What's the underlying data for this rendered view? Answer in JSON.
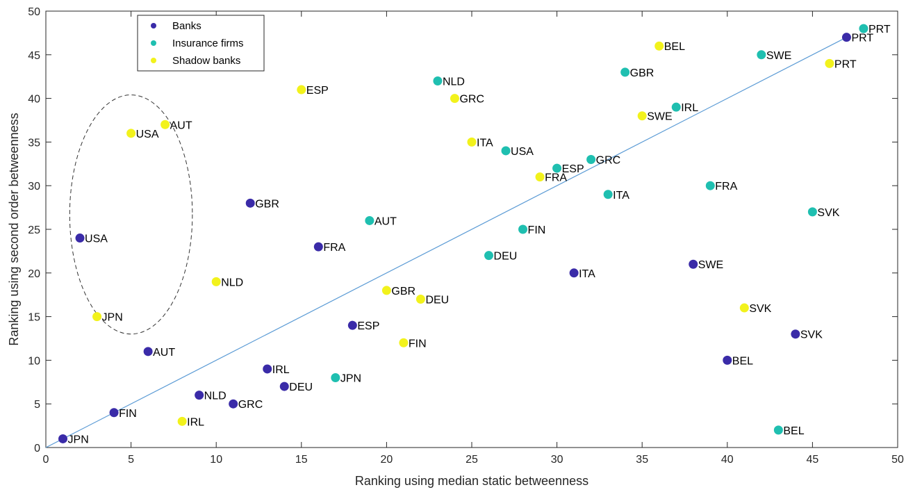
{
  "chart_data": {
    "type": "scatter",
    "xlabel": "Ranking using median static betweenness",
    "ylabel": "Ranking using second order betweenness",
    "xlim": [
      0,
      50
    ],
    "ylim": [
      0,
      50
    ],
    "xticks": [
      0,
      5,
      10,
      15,
      20,
      25,
      30,
      35,
      40,
      45,
      50
    ],
    "yticks": [
      0,
      5,
      10,
      15,
      20,
      25,
      30,
      35,
      40,
      45,
      50
    ],
    "grid": false,
    "legend": "top-left",
    "reference_line": {
      "type": "diagonal",
      "x": [
        0,
        47
      ],
      "y": [
        0,
        47
      ],
      "color": "#5b9bd5"
    },
    "highlight_ellipse": {
      "center": [
        5,
        26.7
      ],
      "rx": 3.6,
      "ry": 13.7,
      "style": "dashed"
    },
    "series": [
      {
        "name": "Banks",
        "color": "#3a2ba8",
        "points": [
          {
            "label": "JPN",
            "x": 1,
            "y": 1
          },
          {
            "label": "USA",
            "x": 2,
            "y": 24
          },
          {
            "label": "FIN",
            "x": 4,
            "y": 4
          },
          {
            "label": "AUT",
            "x": 6,
            "y": 11
          },
          {
            "label": "NLD",
            "x": 9,
            "y": 6
          },
          {
            "label": "GRC",
            "x": 11,
            "y": 5
          },
          {
            "label": "GBR",
            "x": 12,
            "y": 28
          },
          {
            "label": "IRL",
            "x": 13,
            "y": 9
          },
          {
            "label": "DEU",
            "x": 14,
            "y": 7
          },
          {
            "label": "FRA",
            "x": 16,
            "y": 23
          },
          {
            "label": "ESP",
            "x": 18,
            "y": 14
          },
          {
            "label": "ITA",
            "x": 31,
            "y": 20
          },
          {
            "label": "SWE",
            "x": 38,
            "y": 21
          },
          {
            "label": "BEL",
            "x": 40,
            "y": 10
          },
          {
            "label": "SVK",
            "x": 44,
            "y": 13
          },
          {
            "label": "PRT",
            "x": 47,
            "y": 47
          }
        ]
      },
      {
        "name": "Insurance firms",
        "color": "#1fbfb0",
        "points": [
          {
            "label": "JPN",
            "x": 17,
            "y": 8
          },
          {
            "label": "AUT",
            "x": 19,
            "y": 26
          },
          {
            "label": "NLD",
            "x": 23,
            "y": 42
          },
          {
            "label": "DEU",
            "x": 26,
            "y": 22
          },
          {
            "label": "USA",
            "x": 27,
            "y": 34
          },
          {
            "label": "FIN",
            "x": 28,
            "y": 25
          },
          {
            "label": "ESP",
            "x": 30,
            "y": 32
          },
          {
            "label": "GRC",
            "x": 32,
            "y": 33
          },
          {
            "label": "ITA",
            "x": 33,
            "y": 29
          },
          {
            "label": "GBR",
            "x": 34,
            "y": 43
          },
          {
            "label": "IRL",
            "x": 37,
            "y": 39
          },
          {
            "label": "FRA",
            "x": 39,
            "y": 30
          },
          {
            "label": "SWE",
            "x": 42,
            "y": 45
          },
          {
            "label": "BEL",
            "x": 43,
            "y": 2
          },
          {
            "label": "SVK",
            "x": 45,
            "y": 27
          },
          {
            "label": "PRT",
            "x": 48,
            "y": 48
          }
        ]
      },
      {
        "name": "Shadow banks",
        "color": "#f2f21c",
        "points": [
          {
            "label": "JPN",
            "x": 3,
            "y": 15
          },
          {
            "label": "USA",
            "x": 5,
            "y": 36
          },
          {
            "label": "AUT",
            "x": 7,
            "y": 37
          },
          {
            "label": "IRL",
            "x": 8,
            "y": 3
          },
          {
            "label": "NLD",
            "x": 10,
            "y": 19
          },
          {
            "label": "ESP",
            "x": 15,
            "y": 41
          },
          {
            "label": "GBR",
            "x": 20,
            "y": 18
          },
          {
            "label": "FIN",
            "x": 21,
            "y": 12
          },
          {
            "label": "DEU",
            "x": 22,
            "y": 17
          },
          {
            "label": "GRC",
            "x": 24,
            "y": 40
          },
          {
            "label": "ITA",
            "x": 25,
            "y": 35
          },
          {
            "label": "FRA",
            "x": 29,
            "y": 31
          },
          {
            "label": "SWE",
            "x": 35,
            "y": 38
          },
          {
            "label": "BEL",
            "x": 36,
            "y": 46
          },
          {
            "label": "SVK",
            "x": 41,
            "y": 16
          },
          {
            "label": "PRT",
            "x": 46,
            "y": 44
          }
        ]
      }
    ]
  }
}
